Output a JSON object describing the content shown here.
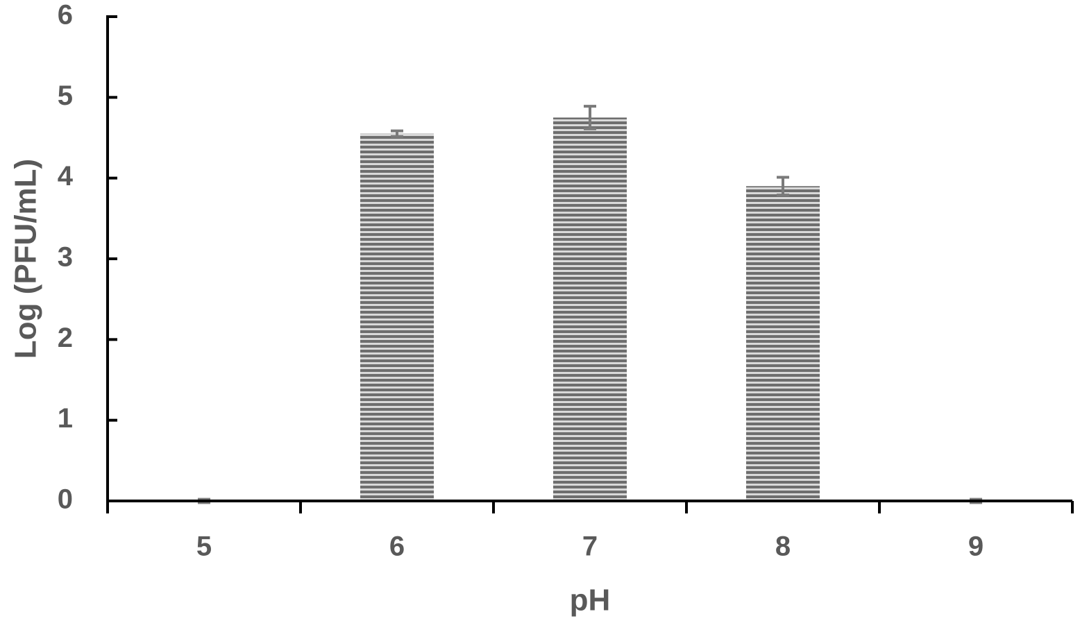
{
  "chart_data": {
    "type": "bar",
    "x_label": "pH",
    "y_label": "Log (PFU/mL)",
    "categories": [
      "5",
      "6",
      "7",
      "8",
      "9"
    ],
    "values": [
      0,
      4.55,
      4.75,
      3.9,
      0
    ],
    "errors": [
      0.02,
      0.035,
      0.14,
      0.11,
      0.02
    ],
    "color": "#6e6e6e",
    "error_color": "#7a7a7a",
    "ylim": [
      0,
      6
    ],
    "yticks": [
      0,
      1,
      2,
      3,
      4,
      5,
      6
    ],
    "grid": false
  }
}
